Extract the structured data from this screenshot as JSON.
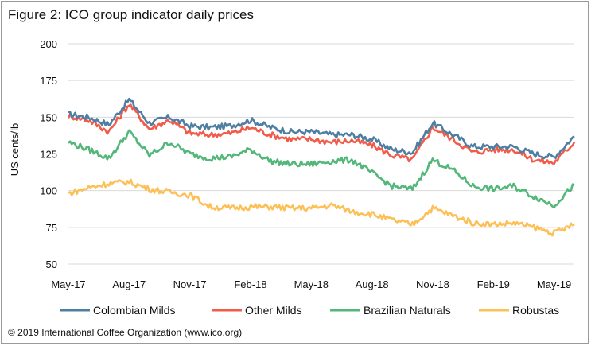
{
  "figure": {
    "title": "Figure 2: ICO group indicator daily prices",
    "footer": "© 2019 International Coffee Organization (www.ico.org)"
  },
  "colors": {
    "colombian_milds": "#4e7ea2",
    "other_milds": "#f15b4a",
    "brazilian_naturals": "#52b779",
    "robustas": "#fcc057",
    "grid": "#d9d9d9"
  },
  "chart_data": {
    "type": "line",
    "title": "",
    "xlabel": "",
    "ylabel": "US cents/lb",
    "ylim": [
      50,
      200
    ],
    "yticks": [
      "50",
      "75",
      "100",
      "125",
      "150",
      "175",
      "200"
    ],
    "xticks": [
      "May-17",
      "Aug-17",
      "Nov-17",
      "Feb-18",
      "May-18",
      "Aug-18",
      "Nov-18",
      "Feb-19",
      "May-19"
    ],
    "grid": "horizontal",
    "legend_position": "bottom",
    "x": [
      "May-17",
      "Jun-17",
      "Jul-17",
      "Aug-17",
      "Sep-17",
      "Oct-17",
      "Nov-17",
      "Dec-17",
      "Jan-18",
      "Feb-18",
      "Mar-18",
      "Apr-18",
      "May-18",
      "Jun-18",
      "Jul-18",
      "Aug-18",
      "Sep-18",
      "Oct-18",
      "Nov-18",
      "Dec-18",
      "Jan-19",
      "Feb-19",
      "Mar-19",
      "Apr-19",
      "May-19",
      "Jun-19"
    ],
    "series": [
      {
        "name": "Colombian Milds",
        "color_key": "colombian_milds",
        "values": [
          152,
          150,
          145,
          162,
          146,
          150,
          144,
          143,
          144,
          148,
          143,
          140,
          140,
          138,
          138,
          135,
          128,
          126,
          146,
          138,
          130,
          130,
          130,
          125,
          123,
          137
        ]
      },
      {
        "name": "Other Milds",
        "color_key": "other_milds",
        "values": [
          151,
          148,
          140,
          159,
          142,
          148,
          139,
          138,
          139,
          143,
          138,
          135,
          135,
          133,
          134,
          131,
          124,
          121,
          143,
          135,
          126,
          128,
          128,
          121,
          119,
          133
        ]
      },
      {
        "name": "Brazilian Naturals",
        "color_key": "brazilian_naturals",
        "values": [
          133,
          128,
          122,
          140,
          124,
          133,
          125,
          122,
          123,
          128,
          120,
          118,
          118,
          120,
          121,
          112,
          103,
          101,
          121,
          114,
          103,
          101,
          103,
          96,
          90,
          104
        ]
      },
      {
        "name": "Robustas",
        "color_key": "robustas",
        "values": [
          98,
          102,
          105,
          106,
          101,
          99,
          97,
          89,
          88,
          89,
          89,
          88,
          88,
          90,
          86,
          84,
          80,
          77,
          88,
          83,
          78,
          77,
          78,
          75,
          71,
          77
        ]
      }
    ]
  }
}
